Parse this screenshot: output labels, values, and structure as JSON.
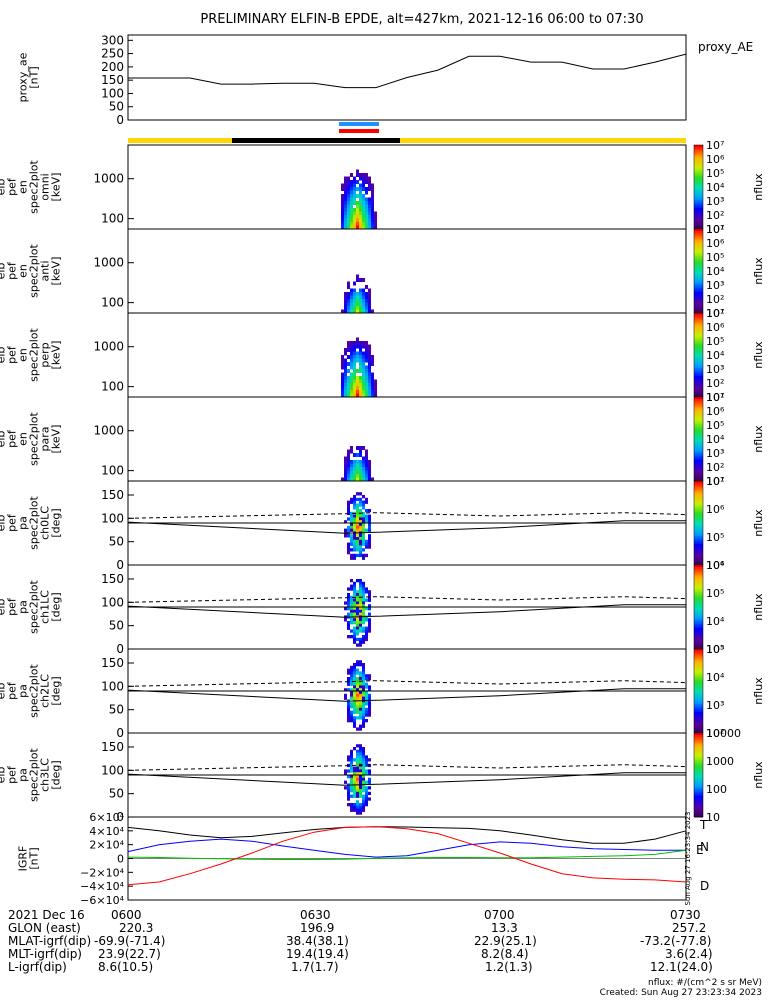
{
  "title": "PRELIMINARY ELFIN-B EPDE, alt=427km, 2021-12-16 06:00 to 07:30",
  "chart_data": [
    {
      "type": "line",
      "name": "proxy_ae",
      "ylabel_lines": [
        "proxy_ae",
        "[nT]"
      ],
      "yticks": [
        "0",
        "50",
        "100",
        "150",
        "200",
        "250",
        "300"
      ],
      "ylim": [
        0,
        320
      ],
      "legend": "proxy_AE",
      "x_minutes": [
        0,
        5,
        10,
        15,
        20,
        25,
        30,
        35,
        40,
        45,
        50,
        55,
        60,
        65,
        70,
        75,
        80,
        85,
        90
      ],
      "values": [
        158,
        158,
        158,
        135,
        135,
        138,
        138,
        122,
        122,
        160,
        188,
        240,
        240,
        218,
        218,
        192,
        192,
        218,
        248
      ]
    },
    {
      "type": "heatmap",
      "name": "elb_pef_en_spec2plot_omni",
      "ylabel_lines": [
        "elb",
        "pef",
        "en",
        "spec2plot",
        "omni",
        "[keV]"
      ],
      "yticks": [
        "100",
        "1000"
      ],
      "scale": "log",
      "colorbar_label": "nflux",
      "colorbar_ticks": [
        "10¹",
        "10²",
        "10³",
        "10⁴",
        "10⁵",
        "10⁶",
        "10⁷"
      ]
    },
    {
      "type": "heatmap",
      "name": "elb_pef_en_spec2plot_anti",
      "ylabel_lines": [
        "elb",
        "pef",
        "en",
        "spec2plot",
        "anti",
        "[keV]"
      ],
      "yticks": [
        "100",
        "1000"
      ],
      "scale": "log",
      "colorbar_label": "nflux",
      "colorbar_ticks": [
        "10¹",
        "10²",
        "10³",
        "10⁴",
        "10⁵",
        "10⁶",
        "10⁷"
      ]
    },
    {
      "type": "heatmap",
      "name": "elb_pef_en_spec2plot_perp",
      "ylabel_lines": [
        "elb",
        "pef",
        "en",
        "spec2plot",
        "perp",
        "[keV]"
      ],
      "yticks": [
        "100",
        "1000"
      ],
      "scale": "log",
      "colorbar_label": "nflux",
      "colorbar_ticks": [
        "10¹",
        "10²",
        "10³",
        "10⁴",
        "10⁵",
        "10⁶",
        "10⁷"
      ]
    },
    {
      "type": "heatmap",
      "name": "elb_pef_en_spec2plot_para",
      "ylabel_lines": [
        "elb",
        "pef",
        "en",
        "spec2plot",
        "para",
        "[keV]"
      ],
      "yticks": [
        "100",
        "1000"
      ],
      "scale": "log",
      "colorbar_label": "nflux",
      "colorbar_ticks": [
        "10¹",
        "10²",
        "10³",
        "10⁴",
        "10⁵",
        "10⁶",
        "10⁷"
      ]
    },
    {
      "type": "heatmap",
      "name": "elb_pef_pa_spec2plot_ch0LC",
      "ylabel_lines": [
        "elb",
        "pef",
        "pa",
        "spec2plot",
        "ch0LC",
        "[deg]"
      ],
      "yticks": [
        "0",
        "50",
        "100",
        "150"
      ],
      "ylim": [
        0,
        180
      ],
      "colorbar_label": "nflux",
      "colorbar_ticks": [
        "10⁴",
        "10⁵",
        "10⁶",
        "10⁷"
      ]
    },
    {
      "type": "heatmap",
      "name": "elb_pef_pa_spec2plot_ch1LC",
      "ylabel_lines": [
        "elb",
        "pef",
        "pa",
        "spec2plot",
        "ch1LC",
        "[deg]"
      ],
      "yticks": [
        "0",
        "50",
        "100",
        "150"
      ],
      "ylim": [
        0,
        180
      ],
      "colorbar_label": "nflux",
      "colorbar_ticks": [
        "10³",
        "10⁴",
        "10⁵",
        "10⁶"
      ]
    },
    {
      "type": "heatmap",
      "name": "elb_pef_pa_spec2plot_ch2LC",
      "ylabel_lines": [
        "elb",
        "pef",
        "pa",
        "spec2plot",
        "ch2LC",
        "[deg]"
      ],
      "yticks": [
        "0",
        "50",
        "100",
        "150"
      ],
      "ylim": [
        0,
        180
      ],
      "colorbar_label": "nflux",
      "colorbar_ticks": [
        "10²",
        "10³",
        "10⁴",
        "10⁵"
      ]
    },
    {
      "type": "heatmap",
      "name": "elb_pef_pa_spec2plot_ch3LC",
      "ylabel_lines": [
        "elb",
        "pef",
        "pa",
        "spec2plot",
        "ch3LC",
        "[deg]"
      ],
      "yticks": [
        "0",
        "50",
        "100",
        "150"
      ],
      "ylim": [
        0,
        180
      ],
      "colorbar_label": "nflux",
      "colorbar_ticks": [
        "10",
        "100",
        "1000",
        "10000"
      ]
    },
    {
      "type": "line",
      "name": "elb_IGRF",
      "ylabel_lines": [
        "IGRF",
        "[nT]"
      ],
      "yticks": [
        "−6×10⁴",
        "−4×10⁴",
        "−2×10⁴",
        "0",
        "2×10⁴",
        "4×10⁴",
        "6×10⁴"
      ],
      "ylim": [
        -60000,
        60000
      ],
      "x_minutes": [
        0,
        5,
        10,
        15,
        20,
        25,
        30,
        35,
        40,
        45,
        50,
        55,
        60,
        65,
        70,
        75,
        80,
        85,
        90
      ],
      "series": [
        {
          "name": "T",
          "color": "#000000",
          "values": [
            45000,
            40000,
            34000,
            30000,
            32000,
            37000,
            42000,
            45000,
            46000,
            45500,
            44500,
            43500,
            40000,
            34000,
            27000,
            22000,
            22000,
            28000,
            40000
          ]
        },
        {
          "name": "N",
          "color": "#0000ff",
          "values": [
            10000,
            20000,
            25000,
            28000,
            25000,
            18000,
            12000,
            6000,
            2000,
            4000,
            12000,
            20000,
            24000,
            22000,
            17000,
            14000,
            13000,
            12000,
            12000
          ]
        },
        {
          "name": "E",
          "color": "#00c000",
          "values": [
            2000,
            1500,
            500,
            -500,
            -1000,
            -1500,
            -1500,
            -1000,
            500,
            1000,
            1500,
            1500,
            1000,
            1000,
            2000,
            3000,
            4000,
            6000,
            12000
          ]
        },
        {
          "name": "D",
          "color": "#ff0000",
          "values": [
            -38000,
            -34000,
            -22000,
            -8000,
            8000,
            25000,
            38000,
            45000,
            46000,
            43000,
            36000,
            22000,
            8000,
            -8000,
            -22000,
            -28000,
            -30000,
            -31000,
            -34000
          ]
        }
      ]
    }
  ],
  "ephemeris": {
    "date": "2021 Dec 16",
    "times": [
      "0600",
      "0630",
      "0700",
      "0730"
    ],
    "rows": [
      {
        "label": "GLON (east)",
        "values": [
          "220.3",
          "196.9",
          "13.3",
          "257.2"
        ]
      },
      {
        "label": "MLAT-igrf(dip)",
        "values": [
          "-69.9(-71.4)",
          "38.4(38.1)",
          "22.9(25.1)",
          "-73.2(-77.8)"
        ]
      },
      {
        "label": "MLT-igrf(dip)",
        "values": [
          "23.9(22.7)",
          "19.4(19.4)",
          "8.2(8.4)",
          "3.6(2.4)"
        ]
      },
      {
        "label": "L-igrf(dip)",
        "values": [
          "8.6(10.5)",
          "1.7(1.7)",
          "1.2(1.3)",
          "12.1(24.0)"
        ]
      }
    ]
  },
  "notes": {
    "units": "nflux: #/(cm^2 s sr MeV)",
    "created": "Created: Sun Aug 27 23:23:34 2023",
    "side_stamp": "Sun Aug 27 16:23:34 2023"
  },
  "colors": {
    "bar_yellow": "#ffd700",
    "bar_black": "#000000",
    "marker_blue": "#1e90ff",
    "marker_red": "#ff0000"
  }
}
